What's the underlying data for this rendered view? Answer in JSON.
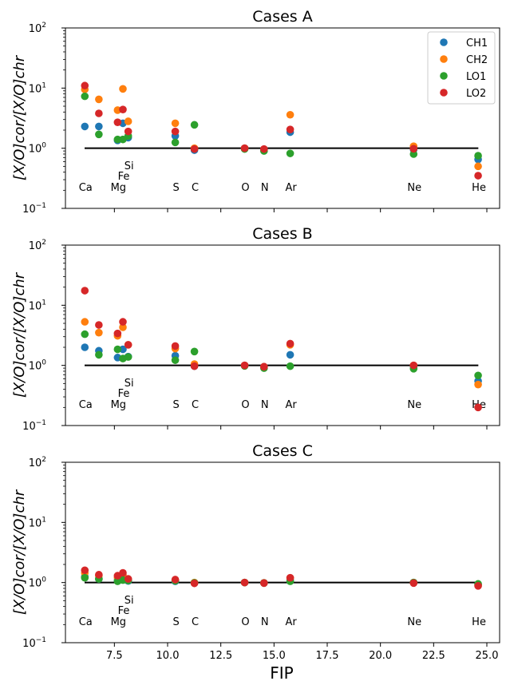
{
  "figure": {
    "shared_xlabel": "FIP",
    "ylabel": "[X/O]cor/[X/O]chr",
    "series_names": [
      "CH1",
      "CH2",
      "LO1",
      "LO2"
    ],
    "colors": {
      "CH1": "#1f77b4",
      "CH2": "#ff7f0e",
      "LO1": "#2ca02c",
      "LO2": "#d62728"
    }
  },
  "chart_data": [
    {
      "type": "scatter",
      "title": "Cases A",
      "xlabel": "",
      "ylabel": "[X/O]cor/[X/O]chr",
      "yscale": "log",
      "xlim": [
        5.2,
        25.6
      ],
      "ylim": [
        0.1,
        100
      ],
      "x_ticks": [
        7.5,
        10.0,
        12.5,
        15.0,
        17.5,
        20.0,
        22.5,
        25.0
      ],
      "y_ticks": [
        "10^-1",
        "10^0",
        "10^1",
        "10^2"
      ],
      "legend": "top-right",
      "reference_line": {
        "y": 1.0,
        "x_range": [
          6.1,
          24.6
        ]
      },
      "element_labels": [
        {
          "text": "Ca",
          "x": 6.11
        },
        {
          "text": "Mg",
          "x": 7.65
        },
        {
          "text": "Si",
          "x": 8.15,
          "row": 3
        },
        {
          "text": "Fe",
          "x": 7.9,
          "row": 2
        },
        {
          "text": "S",
          "x": 10.36
        },
        {
          "text": "C",
          "x": 11.26
        },
        {
          "text": "O",
          "x": 13.62
        },
        {
          "text": "N",
          "x": 14.53
        },
        {
          "text": "Ar",
          "x": 15.76
        },
        {
          "text": "Ne",
          "x": 21.56
        },
        {
          "text": "He",
          "x": 24.59
        }
      ],
      "series": [
        {
          "name": "CH1",
          "x": [
            6.11,
            6.77,
            7.65,
            7.9,
            8.15,
            10.36,
            11.26,
            13.62,
            14.53,
            15.76,
            21.56,
            24.59
          ],
          "y": [
            2.3,
            2.3,
            1.35,
            2.6,
            1.5,
            1.6,
            0.93,
            1.0,
            0.95,
            1.85,
            0.95,
            0.65
          ]
        },
        {
          "name": "CH2",
          "x": [
            6.11,
            6.77,
            7.65,
            7.9,
            8.15,
            10.36,
            11.26,
            13.62,
            14.53,
            15.76,
            21.56,
            24.59
          ],
          "y": [
            9.5,
            6.5,
            4.3,
            9.7,
            2.8,
            2.6,
            1.0,
            1.0,
            0.95,
            3.6,
            1.08,
            0.5
          ]
        },
        {
          "name": "LO1",
          "x": [
            6.11,
            6.77,
            7.65,
            7.9,
            8.15,
            10.36,
            11.26,
            13.62,
            14.53,
            15.76,
            21.56,
            24.59
          ],
          "y": [
            7.3,
            1.7,
            1.4,
            1.4,
            1.6,
            1.25,
            2.45,
            0.97,
            0.9,
            0.82,
            0.8,
            0.75
          ]
        },
        {
          "name": "LO2",
          "x": [
            6.11,
            6.77,
            7.65,
            7.9,
            8.15,
            10.36,
            11.26,
            13.62,
            14.53,
            15.76,
            21.56,
            24.59
          ],
          "y": [
            11.0,
            3.8,
            2.7,
            4.4,
            1.9,
            1.9,
            0.97,
            1.0,
            0.97,
            2.05,
            0.98,
            0.35
          ]
        }
      ]
    },
    {
      "type": "scatter",
      "title": "Cases B",
      "xlabel": "",
      "ylabel": "[X/O]cor/[X/O]chr",
      "yscale": "log",
      "xlim": [
        5.2,
        25.6
      ],
      "ylim": [
        0.1,
        100
      ],
      "x_ticks": [
        7.5,
        10.0,
        12.5,
        15.0,
        17.5,
        20.0,
        22.5,
        25.0
      ],
      "y_ticks": [
        "10^-1",
        "10^0",
        "10^1",
        "10^2"
      ],
      "reference_line": {
        "y": 1.0,
        "x_range": [
          6.1,
          24.6
        ]
      },
      "element_labels": [
        {
          "text": "Ca",
          "x": 6.11
        },
        {
          "text": "Mg",
          "x": 7.65
        },
        {
          "text": "Si",
          "x": 8.15,
          "row": 3
        },
        {
          "text": "Fe",
          "x": 7.9,
          "row": 2
        },
        {
          "text": "S",
          "x": 10.36
        },
        {
          "text": "C",
          "x": 11.26
        },
        {
          "text": "O",
          "x": 13.62
        },
        {
          "text": "N",
          "x": 14.53
        },
        {
          "text": "Ar",
          "x": 15.76
        },
        {
          "text": "Ne",
          "x": 21.56
        },
        {
          "text": "He",
          "x": 24.59
        }
      ],
      "series": [
        {
          "name": "CH1",
          "x": [
            6.11,
            6.77,
            7.65,
            7.9,
            8.15,
            10.36,
            11.26,
            13.62,
            14.53,
            15.76,
            21.56,
            24.59
          ],
          "y": [
            2.0,
            1.75,
            1.35,
            1.85,
            1.4,
            1.45,
            0.97,
            1.0,
            0.95,
            1.5,
            0.95,
            0.55
          ]
        },
        {
          "name": "CH2",
          "x": [
            6.11,
            6.77,
            7.65,
            7.9,
            8.15,
            10.36,
            11.26,
            13.62,
            14.53,
            15.76,
            21.56,
            24.59
          ],
          "y": [
            5.3,
            3.5,
            3.1,
            4.3,
            2.2,
            1.9,
            1.05,
            1.0,
            0.95,
            2.2,
            1.0,
            0.48
          ]
        },
        {
          "name": "LO1",
          "x": [
            6.11,
            6.77,
            7.65,
            7.9,
            8.15,
            10.36,
            11.26,
            13.62,
            14.53,
            15.76,
            21.56,
            24.59
          ],
          "y": [
            3.3,
            1.5,
            1.85,
            1.3,
            1.38,
            1.22,
            1.7,
            0.98,
            0.9,
            0.97,
            0.88,
            0.68
          ]
        },
        {
          "name": "LO2",
          "x": [
            6.11,
            6.77,
            7.65,
            7.9,
            8.15,
            10.36,
            11.26,
            13.62,
            14.53,
            15.76,
            21.56,
            24.59
          ],
          "y": [
            17.5,
            4.7,
            3.4,
            5.3,
            2.2,
            2.1,
            0.97,
            1.0,
            0.95,
            2.3,
            1.0,
            0.2
          ]
        }
      ]
    },
    {
      "type": "scatter",
      "title": "Cases C",
      "xlabel": "FIP",
      "ylabel": "[X/O]cor/[X/O]chr",
      "yscale": "log",
      "xlim": [
        5.2,
        25.6
      ],
      "ylim": [
        0.1,
        100
      ],
      "x_ticks": [
        7.5,
        10.0,
        12.5,
        15.0,
        17.5,
        20.0,
        22.5,
        25.0
      ],
      "y_ticks": [
        "10^-1",
        "10^0",
        "10^1",
        "10^2"
      ],
      "reference_line": {
        "y": 1.0,
        "x_range": [
          6.1,
          24.6
        ]
      },
      "element_labels": [
        {
          "text": "Ca",
          "x": 6.11
        },
        {
          "text": "Mg",
          "x": 7.65
        },
        {
          "text": "Si",
          "x": 8.15,
          "row": 3
        },
        {
          "text": "Fe",
          "x": 7.9,
          "row": 2
        },
        {
          "text": "S",
          "x": 10.36
        },
        {
          "text": "C",
          "x": 11.26
        },
        {
          "text": "O",
          "x": 13.62
        },
        {
          "text": "N",
          "x": 14.53
        },
        {
          "text": "Ar",
          "x": 15.76
        },
        {
          "text": "Ne",
          "x": 21.56
        },
        {
          "text": "He",
          "x": 24.59
        }
      ],
      "series": [
        {
          "name": "CH1",
          "x": [
            6.11,
            6.77,
            7.65,
            7.9,
            8.15,
            10.36,
            11.26,
            13.62,
            14.53,
            15.76,
            21.56,
            24.59
          ],
          "y": [
            1.25,
            1.15,
            1.08,
            1.12,
            1.06,
            1.05,
            0.98,
            1.0,
            0.99,
            1.1,
            1.0,
            0.93
          ]
        },
        {
          "name": "CH2",
          "x": [
            6.11,
            6.77,
            7.65,
            7.9,
            8.15,
            10.36,
            11.26,
            13.62,
            14.53,
            15.76,
            21.56,
            24.59
          ],
          "y": [
            1.45,
            1.3,
            1.2,
            1.35,
            1.12,
            1.1,
            1.0,
            1.0,
            0.99,
            1.18,
            1.0,
            0.9
          ]
        },
        {
          "name": "LO1",
          "x": [
            6.11,
            6.77,
            7.65,
            7.9,
            8.15,
            10.36,
            11.26,
            13.62,
            14.53,
            15.76,
            21.56,
            24.59
          ],
          "y": [
            1.2,
            1.15,
            1.05,
            1.1,
            1.08,
            1.07,
            0.99,
            1.0,
            0.98,
            1.05,
            1.0,
            0.95
          ]
        },
        {
          "name": "LO2",
          "x": [
            6.11,
            6.77,
            7.65,
            7.9,
            8.15,
            10.36,
            11.26,
            13.62,
            14.53,
            15.76,
            21.56,
            24.59
          ],
          "y": [
            1.6,
            1.35,
            1.3,
            1.45,
            1.15,
            1.12,
            0.97,
            1.0,
            0.98,
            1.2,
            0.98,
            0.88
          ]
        }
      ]
    }
  ]
}
